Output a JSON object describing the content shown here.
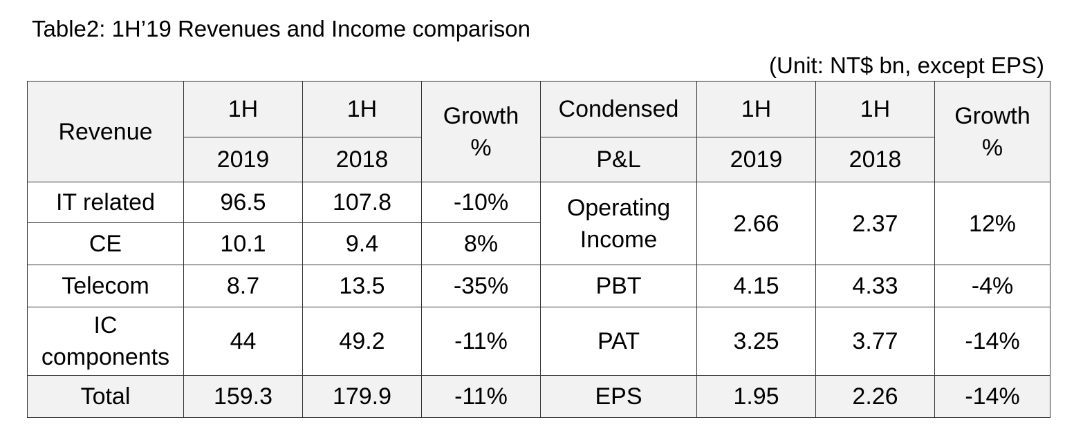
{
  "title": "Table2: 1H’19 Revenues and Income comparison",
  "unit_note": "(Unit: NT$ bn, except EPS)",
  "header": {
    "revenue": "Revenue",
    "col_1h": "1H",
    "year_2019": "2019",
    "year_2018": "2018",
    "growth_top": "Growth",
    "growth_bottom": "%",
    "condensed_top": "Condensed",
    "condensed_bottom": "P&L"
  },
  "revenue_rows": [
    {
      "label": "IT related",
      "y2019": "96.5",
      "y2018": "107.8",
      "growth": "-10%"
    },
    {
      "label": "CE",
      "y2019": "10.1",
      "y2018": "9.4",
      "growth": "8%"
    },
    {
      "label": "Telecom",
      "y2019": "8.7",
      "y2018": "13.5",
      "growth": "-35%"
    },
    {
      "label_top": "IC",
      "label_bottom": "components",
      "y2019": "44",
      "y2018": "49.2",
      "growth": "-11%"
    },
    {
      "label": "Total",
      "y2019": "159.3",
      "y2018": "179.9",
      "growth": "-11%"
    }
  ],
  "pl_rows": [
    {
      "label_top": "Operating",
      "label_bottom": "Income",
      "y2019": "2.66",
      "y2018": "2.37",
      "growth": "12%"
    },
    {
      "label": "PBT",
      "y2019": "4.15",
      "y2018": "4.33",
      "growth": "-4%"
    },
    {
      "label": "PAT",
      "y2019": "3.25",
      "y2018": "3.77",
      "growth": "-14%"
    },
    {
      "label": "EPS",
      "y2019": "1.95",
      "y2018": "2.26",
      "growth": "-14%"
    }
  ]
}
